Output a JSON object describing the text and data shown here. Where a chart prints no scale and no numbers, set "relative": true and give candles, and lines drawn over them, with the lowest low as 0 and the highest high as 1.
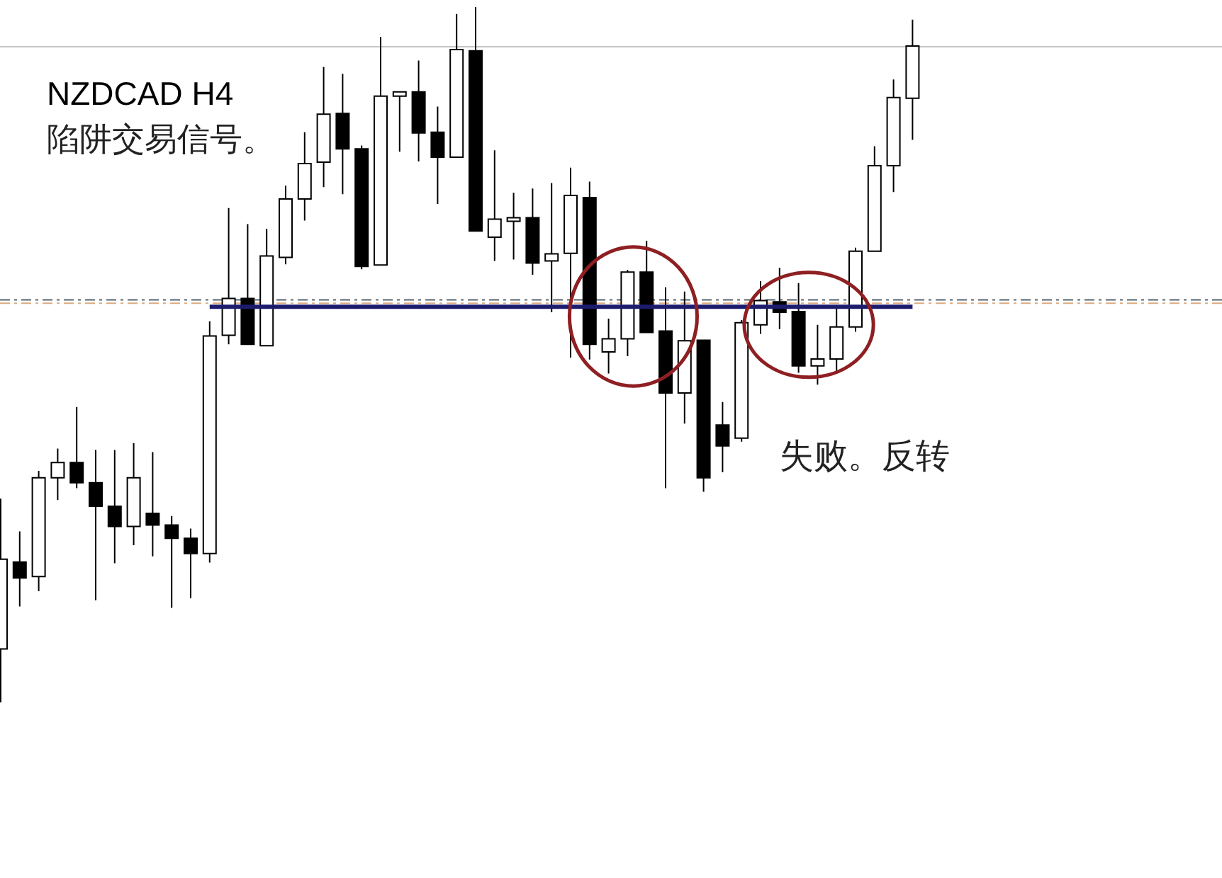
{
  "chart_data": {
    "type": "candlestick",
    "title": "NZDCAD H4",
    "subtitle": "陷阱交易信号。",
    "relative": true,
    "categories": [
      null,
      null,
      null,
      null,
      null,
      null,
      null,
      null,
      null,
      null,
      null,
      null,
      null,
      null,
      null,
      null,
      null,
      null,
      null,
      null,
      null,
      null,
      null,
      null,
      null,
      null,
      null,
      null,
      null,
      null,
      null,
      null,
      null,
      null,
      null,
      null,
      null,
      null,
      null,
      null,
      null,
      null,
      null,
      null,
      null,
      null,
      null,
      null,
      null
    ],
    "series": [
      {
        "type": "candlestick",
        "ohlc": [
          [
            0.077,
            0.293,
            0,
            0.206
          ],
          [
            0.202,
            0.246,
            0.138,
            0.179
          ],
          [
            0.181,
            0.333,
            0.16,
            0.323
          ],
          [
            0.323,
            0.365,
            0.291,
            0.345
          ],
          [
            0.345,
            0.425,
            0.308,
            0.316
          ],
          [
            0.316,
            0.363,
            0.147,
            0.282
          ],
          [
            0.282,
            0.363,
            0.2,
            0.253
          ],
          [
            0.253,
            0.373,
            0.226,
            0.323
          ],
          [
            0.272,
            0.36,
            0.21,
            0.255
          ],
          [
            0.255,
            0.268,
            0.136,
            0.236
          ],
          [
            0.236,
            0.25,
            0.15,
            0.214
          ],
          [
            0.214,
            0.548,
            0.201,
            0.527
          ],
          [
            0.528,
            0.711,
            0.515,
            0.581
          ],
          [
            0.581,
            0.688,
            0.515,
            0.515
          ],
          [
            0.513,
            0.681,
            0.513,
            0.642
          ],
          [
            0.64,
            0.743,
            0.63,
            0.724
          ],
          [
            0.724,
            0.82,
            0.693,
            0.775
          ],
          [
            0.777,
            0.914,
            0.741,
            0.846
          ],
          [
            0.847,
            0.904,
            0.731,
            0.796
          ],
          [
            0.796,
            0.801,
            0.623,
            0.627
          ],
          [
            0.629,
            0.957,
            0.629,
            0.872
          ],
          [
            0.872,
            0.878,
            0.792,
            0.878
          ],
          [
            0.878,
            0.923,
            0.778,
            0.819
          ],
          [
            0.82,
            0.857,
            0.717,
            0.784
          ],
          [
            0.784,
            0.99,
            0.784,
            0.939
          ],
          [
            0.937,
            1,
            0.678,
            0.678
          ],
          [
            0.669,
            0.794,
            0.635,
            0.695
          ],
          [
            0.692,
            0.733,
            0.637,
            0.697
          ],
          [
            0.697,
            0.739,
            0.615,
            0.632
          ],
          [
            0.635,
            0.747,
            0.561,
            0.645
          ],
          [
            0.646,
            0.769,
            0.496,
            0.729
          ],
          [
            0.726,
            0.749,
            0.493,
            0.515
          ],
          [
            0.504,
            0.552,
            0.473,
            0.523
          ],
          [
            0.523,
            0.622,
            0.498,
            0.619
          ],
          [
            0.619,
            0.664,
            0.532,
            0.532
          ],
          [
            0.534,
            0.597,
            0.308,
            0.445
          ],
          [
            0.445,
            0.591,
            0.401,
            0.52
          ],
          [
            0.521,
            0.521,
            0.303,
            0.323
          ],
          [
            0.399,
            0.432,
            0.331,
            0.369
          ],
          [
            0.38,
            0.55,
            0.375,
            0.546
          ],
          [
            0.543,
            0.606,
            0.53,
            0.578
          ],
          [
            0.576,
            0.625,
            0.537,
            0.561
          ],
          [
            0.562,
            0.603,
            0.474,
            0.484
          ],
          [
            0.484,
            0.543,
            0.457,
            0.494
          ],
          [
            0.494,
            0.57,
            0.474,
            0.54
          ],
          [
            0.54,
            0.654,
            0.533,
            0.649
          ],
          [
            0.649,
            0.8,
            0.649,
            0.772
          ],
          [
            0.772,
            0.896,
            0.734,
            0.87
          ],
          [
            0.869,
            0.982,
            0.809,
            0.944
          ]
        ],
        "colors": [
          "#ffffff",
          "#000000",
          "#ffffff",
          "#ffffff",
          "#000000",
          "#000000",
          "#000000",
          "#ffffff",
          "#000000",
          "#000000",
          "#000000",
          "#ffffff",
          "#ffffff",
          "#000000",
          "#ffffff",
          "#ffffff",
          "#ffffff",
          "#ffffff",
          "#000000",
          "#000000",
          "#ffffff",
          "#ffffff",
          "#000000",
          "#000000",
          "#ffffff",
          "#000000",
          "#ffffff",
          "#ffffff",
          "#000000",
          "#ffffff",
          "#ffffff",
          "#000000",
          "#ffffff",
          "#ffffff",
          "#000000",
          "#000000",
          "#ffffff",
          "#000000",
          "#000000",
          "#ffffff",
          "#ffffff",
          "#000000",
          "#000000",
          "#ffffff",
          "#ffffff",
          "#ffffff",
          "#ffffff",
          "#ffffff",
          "#ffffff"
        ]
      },
      {
        "type": "line",
        "color": "#1c1c6e",
        "values": [
          null,
          null,
          null,
          null,
          null,
          null,
          null,
          null,
          null,
          null,
          null,
          0.569,
          0.569,
          0.569,
          0.569,
          0.569,
          0.569,
          0.569,
          0.569,
          0.569,
          0.569,
          0.569,
          0.569,
          0.569,
          0.569,
          0.569,
          0.569,
          0.569,
          0.569,
          0.569,
          0.569,
          0.569,
          0.569,
          0.569,
          0.569,
          0.569,
          0.569,
          0.569,
          0.569,
          0.569,
          0.569,
          0.569,
          0.569,
          0.569,
          0.569,
          0.569,
          0.569,
          0.569,
          0.569
        ]
      }
    ],
    "ref_lines": [
      {
        "axis": "y",
        "value": 0.943,
        "color": "#c4c4c4",
        "line_style": "solid"
      },
      {
        "axis": "y",
        "value": 0.579,
        "color": "#55656e",
        "line_style": "dashed"
      },
      {
        "axis": "y",
        "value": 0.574,
        "color": "#dcaa80",
        "line_style": "dashed"
      }
    ],
    "annotations": [
      "失败。反转"
    ]
  }
}
